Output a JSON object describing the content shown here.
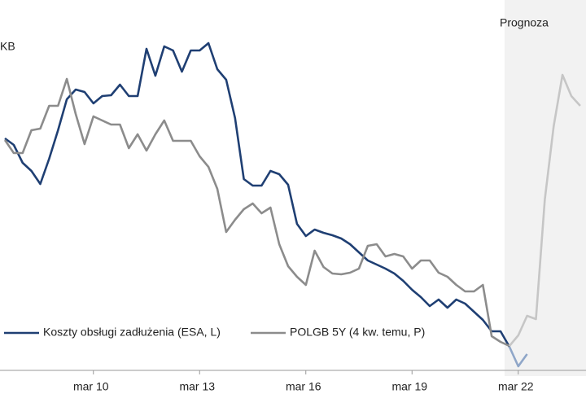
{
  "chart_data": {
    "type": "line",
    "unit_label": "KB",
    "annotation": "Prognoza",
    "forecast_start": 57,
    "categories": [
      null,
      null,
      null,
      null,
      null,
      null,
      null,
      null,
      null,
      null,
      "mar 10",
      null,
      null,
      null,
      null,
      null,
      null,
      null,
      null,
      null,
      null,
      null,
      "mar 13",
      null,
      null,
      null,
      null,
      null,
      null,
      null,
      null,
      null,
      null,
      null,
      "mar 16",
      null,
      null,
      null,
      null,
      null,
      null,
      null,
      null,
      null,
      null,
      null,
      "mar 19",
      null,
      null,
      null,
      null,
      null,
      null,
      null,
      null,
      null,
      null,
      null,
      "mar 22",
      null,
      null,
      null,
      null,
      null,
      null,
      null
    ],
    "ylim": [
      0,
      450
    ],
    "series": [
      {
        "name": "Koszty obsługi zadłużenia (ESA, L)",
        "color": "#1f3f73",
        "forecast_color": "#8fa6c8",
        "values": [
          280,
          272,
          250,
          240,
          224,
          255,
          290,
          328,
          340,
          337,
          323,
          332,
          333,
          346,
          332,
          332,
          390,
          357,
          393,
          388,
          362,
          388,
          388,
          397,
          365,
          352,
          305,
          230,
          222,
          222,
          240,
          236,
          223,
          175,
          160,
          168,
          164,
          161,
          157,
          150,
          140,
          130,
          125,
          120,
          114,
          105,
          94,
          85,
          74,
          82,
          72,
          82,
          77,
          67,
          57,
          43,
          43,
          24,
          0,
          15,
          null,
          null,
          null,
          null,
          null,
          null
        ]
      },
      {
        "name": "POLGB 5Y (4 kw. temu, P)",
        "color": "#8c8c8c",
        "forecast_color": "#c6c6c6",
        "values": [
          278,
          262,
          262,
          290,
          292,
          320,
          320,
          353,
          310,
          273,
          307,
          302,
          297,
          297,
          268,
          285,
          265,
          285,
          302,
          277,
          277,
          277,
          258,
          245,
          218,
          165,
          180,
          193,
          200,
          188,
          195,
          150,
          123,
          110,
          100,
          142,
          122,
          114,
          113,
          115,
          120,
          148,
          150,
          135,
          138,
          135,
          120,
          130,
          130,
          115,
          110,
          100,
          92,
          92,
          100,
          37,
          30,
          25,
          38,
          62,
          58,
          205,
          295,
          358,
          332,
          320
        ]
      }
    ]
  }
}
